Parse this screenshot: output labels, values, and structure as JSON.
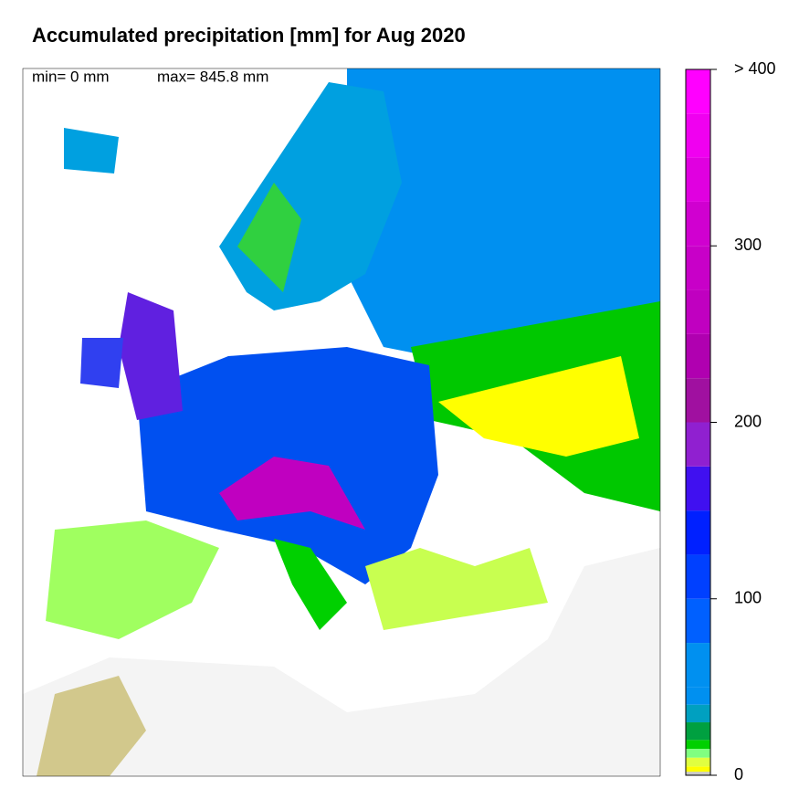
{
  "title": "Accumulated precipitation [mm] for Aug 2020",
  "min": "min= 0 mm",
  "max": "max= 845.8 mm",
  "colorbar": {
    "lim": [
      0,
      400
    ],
    "ticks": [
      0,
      100,
      200,
      300,
      {
        "value": 400,
        "label": "> 400"
      }
    ],
    "bins": [
      0,
      2,
      5,
      10,
      15,
      20,
      30,
      40,
      50,
      75,
      100,
      125,
      150,
      175,
      200,
      225,
      250,
      275,
      300,
      325,
      350,
      375,
      400
    ],
    "colors": [
      "#c8c8c8",
      "#ffff00",
      "#e0ff40",
      "#80ff80",
      "#00d000",
      "#00a040",
      "#00a0c0",
      "#0090f0",
      "#0090f0",
      "#0060ff",
      "#0040ff",
      "#0020ff",
      "#4010f0",
      "#9020d0",
      "#a010a0",
      "#b000b0",
      "#c000c0",
      "#c800c8",
      "#d000d0",
      "#e000e0",
      "#f000f0",
      "#ff00ff"
    ]
  }
}
